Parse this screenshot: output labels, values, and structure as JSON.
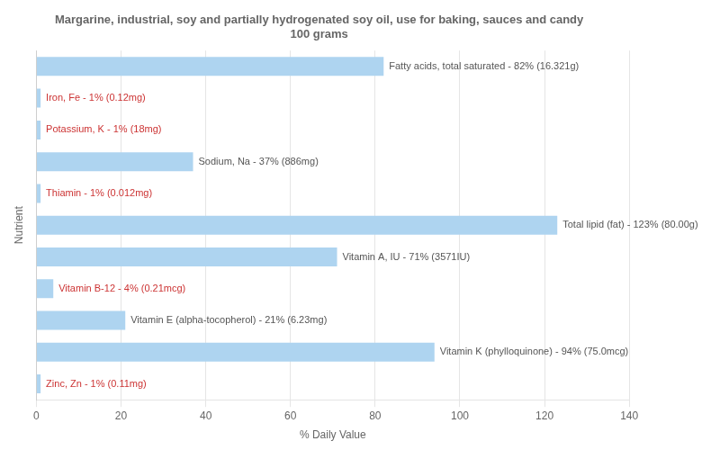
{
  "chart_data": {
    "type": "bar",
    "orientation": "horizontal",
    "title": "Margarine, industrial, soy and partially hydrogenated soy oil, use for baking, sauces and candy\n100 grams",
    "xlabel": "% Daily Value",
    "ylabel": "Nutrient",
    "categories": [
      "Fatty acids, total saturated",
      "Iron, Fe",
      "Potassium, K",
      "Sodium, Na",
      "Thiamin",
      "Total lipid (fat)",
      "Vitamin A, IU",
      "Vitamin B-12",
      "Vitamin E (alpha-tocopherol)",
      "Vitamin K (phylloquinone)",
      "Zinc, Zn"
    ],
    "values": [
      82,
      1,
      1,
      37,
      1,
      123,
      71,
      4,
      21,
      94,
      1
    ],
    "data_labels": true,
    "value_labels": [
      "Fatty acids, total saturated - 82% (16.321g)",
      "Iron, Fe - 1% (0.12mg)",
      "Potassium, K - 1% (18mg)",
      "Sodium, Na - 37% (886mg)",
      "Thiamin - 1% (0.012mg)",
      "Total lipid (fat) - 123% (80.00g)",
      "Vitamin A, IU - 71% (3571IU)",
      "Vitamin B-12 - 4% (0.21mcg)",
      "Vitamin E (alpha-tocopherol) - 21% (6.23mg)",
      "Vitamin K (phylloquinone) - 94% (75.0mcg)",
      "Zinc, Zn - 1% (0.11mg)"
    ],
    "value_label_colors": [
      "#555555",
      "#cc3333",
      "#cc3333",
      "#555555",
      "#cc3333",
      "#555555",
      "#555555",
      "#cc3333",
      "#555555",
      "#555555",
      "#cc3333"
    ],
    "color": "#aed4f0",
    "xlim": [
      0,
      140
    ],
    "xticks": [
      0,
      20,
      40,
      60,
      80,
      100,
      120,
      140
    ],
    "grid": true,
    "tick_labels": "x"
  }
}
